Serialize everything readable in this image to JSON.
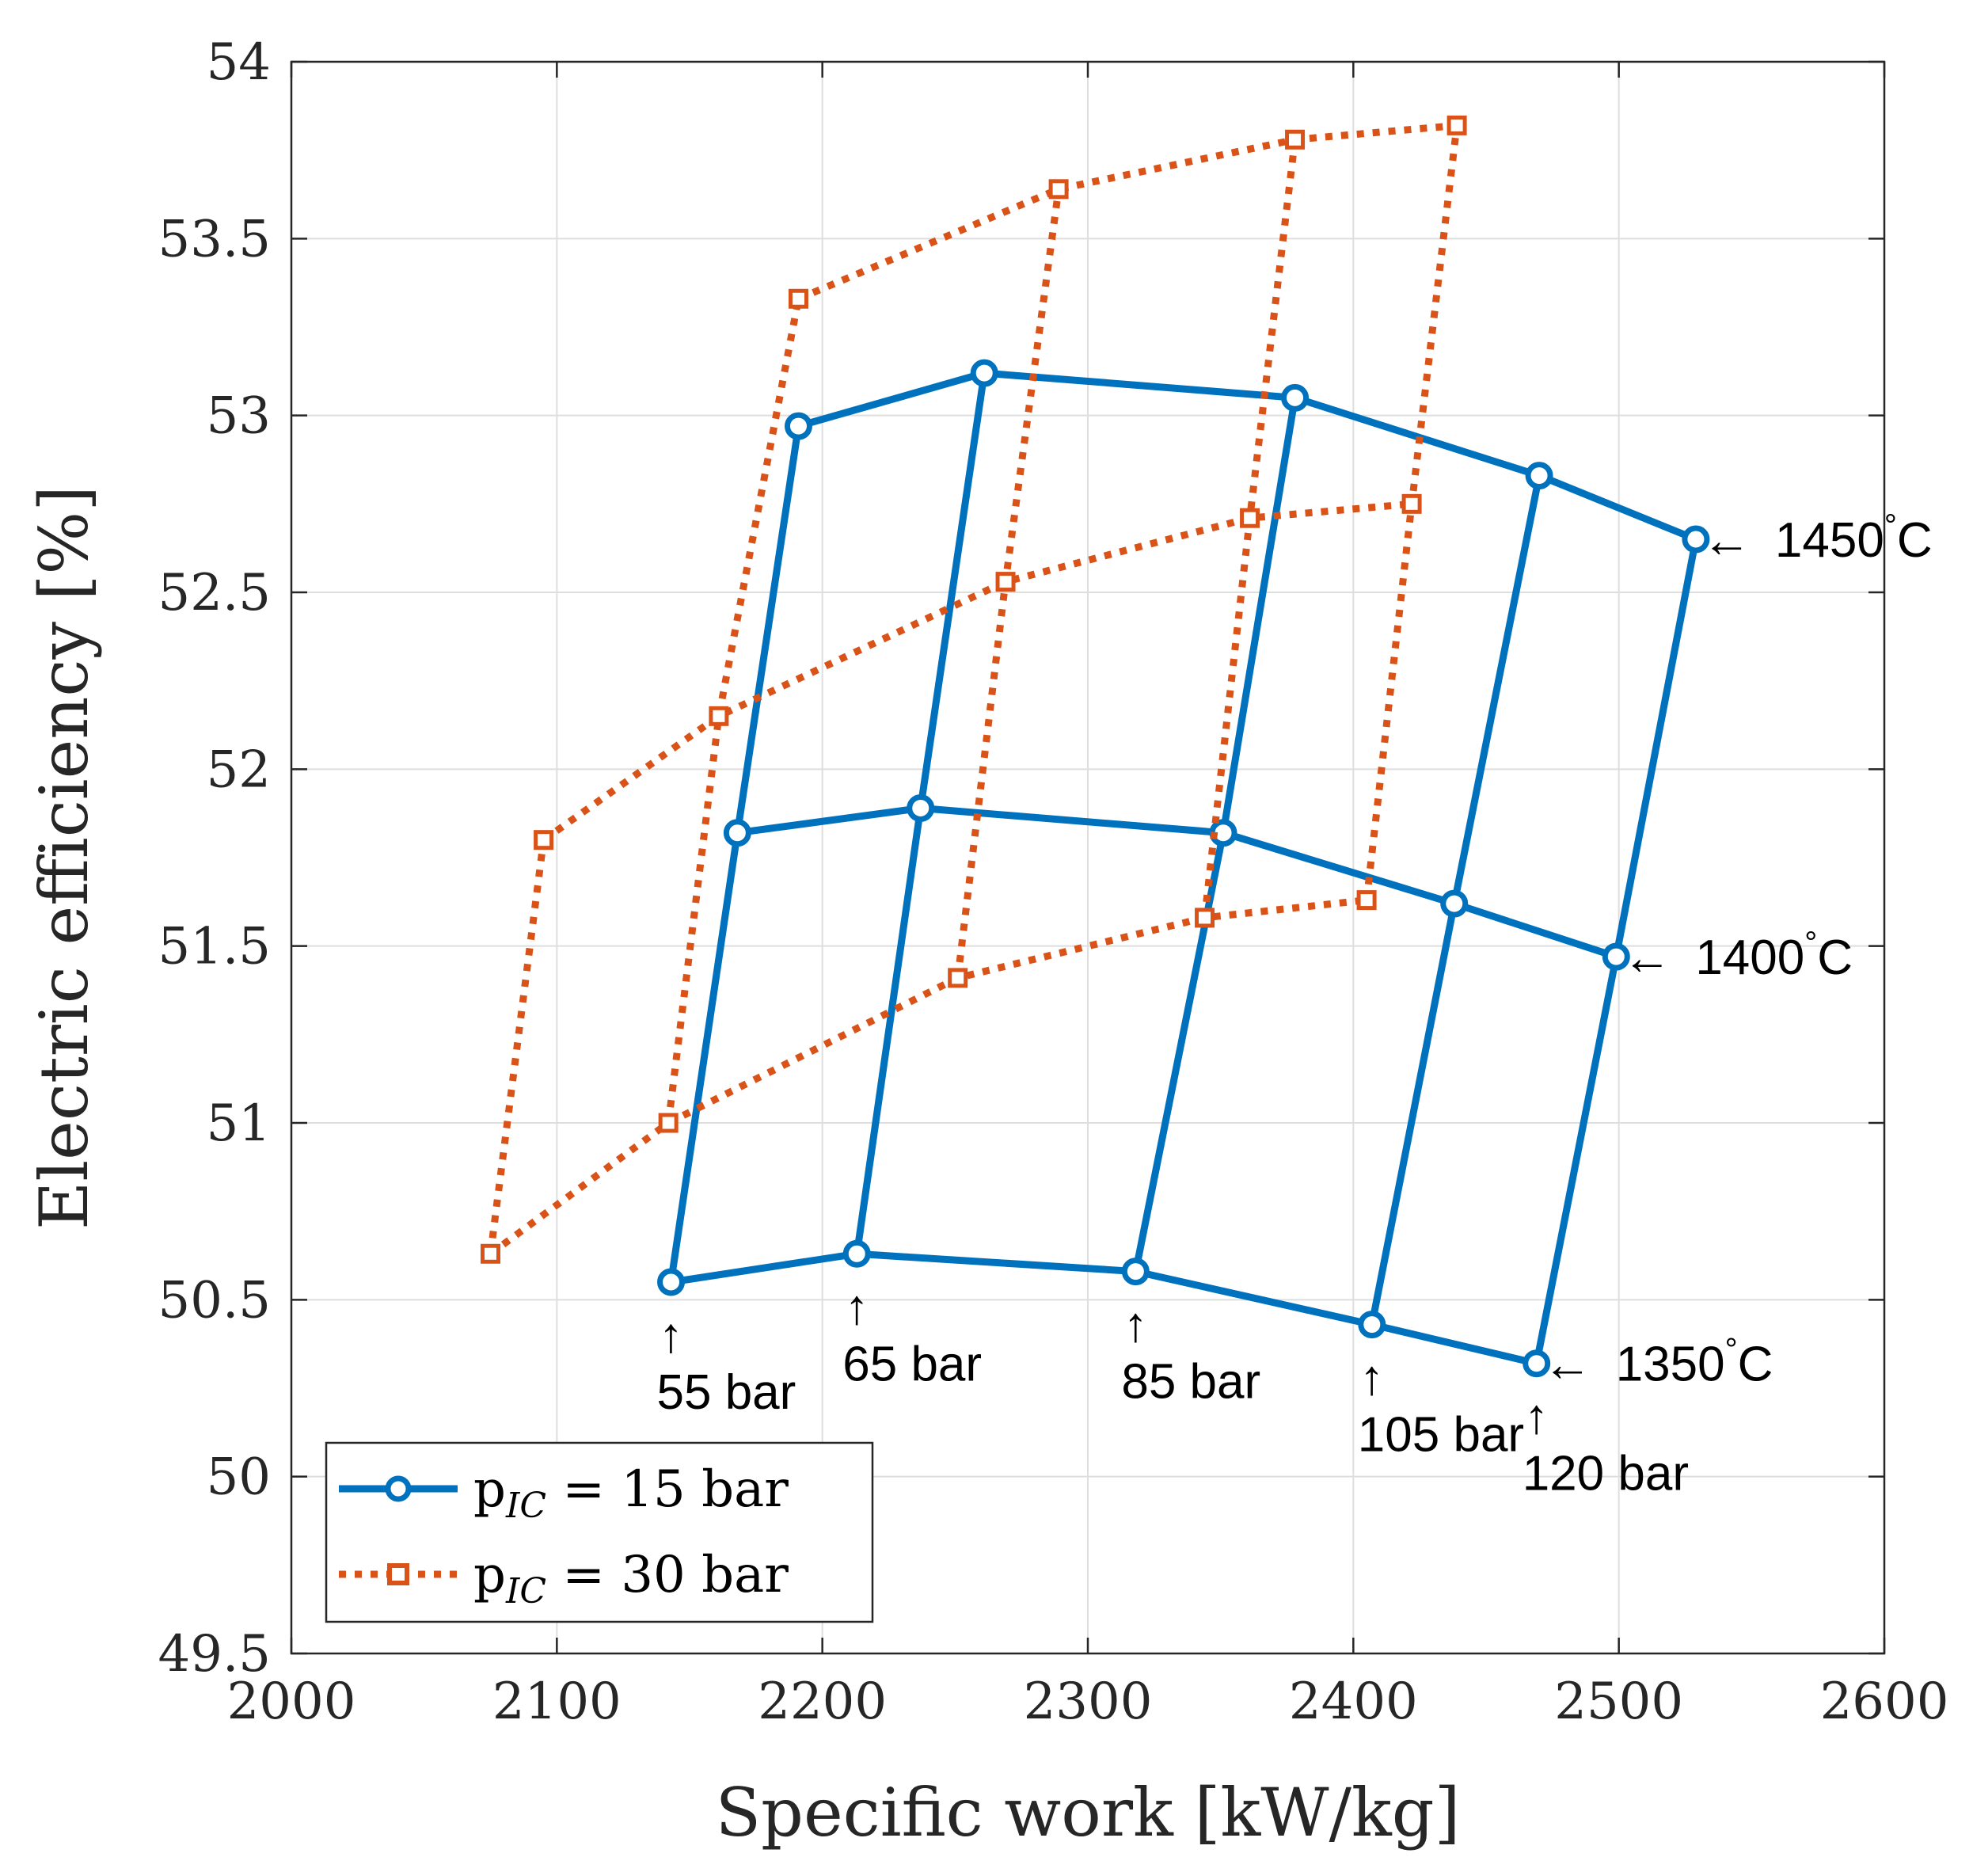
{
  "chart_data": {
    "type": "line",
    "xlabel": "Specific work [kW/kg]",
    "ylabel": "Electric efficiency [%]",
    "xlim": [
      2000,
      2600
    ],
    "ylim": [
      49.5,
      54
    ],
    "xticks": [
      2000,
      2100,
      2200,
      2300,
      2400,
      2500,
      2600
    ],
    "yticks": [
      49.5,
      50,
      50.5,
      51,
      51.5,
      52,
      52.5,
      53,
      53.5,
      54
    ],
    "grid": true,
    "legend_position": "bottom-left",
    "series": [
      {
        "name": "p",
        "name_sub": "IC",
        "name_rest": " = 15 bar",
        "color": "#0072BD",
        "style": "solid",
        "marker": "circle",
        "grid_points": [
          [
            [
              2143,
              50.55
            ],
            [
              2213,
              50.63
            ],
            [
              2318,
              50.58
            ],
            [
              2407,
              50.43
            ],
            [
              2469,
              50.32
            ]
          ],
          [
            [
              2168,
              51.82
            ],
            [
              2237,
              51.89
            ],
            [
              2351,
              51.82
            ],
            [
              2438,
              51.62
            ],
            [
              2499,
              51.47
            ]
          ],
          [
            [
              2191,
              52.97
            ],
            [
              2261,
              53.12
            ],
            [
              2378,
              53.05
            ],
            [
              2470,
              52.83
            ],
            [
              2529,
              52.65
            ]
          ]
        ]
      },
      {
        "name": "p",
        "name_sub": "IC",
        "name_rest": " = 30 bar",
        "color": "#D95319",
        "style": "dotted",
        "marker": "square",
        "grid_points": [
          [
            [
              2075,
              50.63
            ],
            [
              2142,
              51.0
            ],
            [
              2251,
              51.41
            ],
            [
              2344,
              51.58
            ],
            [
              2405,
              51.63
            ]
          ],
          [
            [
              2095,
              51.8
            ],
            [
              2161,
              52.15
            ],
            [
              2269,
              52.53
            ],
            [
              2361,
              52.71
            ],
            [
              2422,
              52.75
            ]
          ],
          [
            [
              2191,
              53.33
            ],
            [
              2289,
              53.64
            ],
            [
              2378,
              53.78
            ],
            [
              2439,
              53.82
            ]
          ]
        ]
      }
    ],
    "annotations": [
      {
        "text": "55 bar",
        "arrow": "↑",
        "x": 2143,
        "y": 50.55
      },
      {
        "text": "65 bar",
        "arrow": "↑",
        "x": 2213,
        "y": 50.63
      },
      {
        "text": "85 bar",
        "arrow": "↑",
        "x": 2318,
        "y": 50.58
      },
      {
        "text": "105 bar",
        "arrow": "↑",
        "x": 2407,
        "y": 50.43
      },
      {
        "text": "120 bar",
        "arrow": "↑",
        "x": 2469,
        "y": 50.32
      },
      {
        "text": "1350",
        "deg": "°",
        "unit": "C",
        "arrow": "←",
        "x": 2469,
        "y": 50.32
      },
      {
        "text": "1400",
        "deg": "°",
        "unit": "C",
        "arrow": "←",
        "x": 2499,
        "y": 51.47
      },
      {
        "text": "1450",
        "deg": "°",
        "unit": "C",
        "arrow": "←",
        "x": 2529,
        "y": 52.65
      }
    ]
  }
}
